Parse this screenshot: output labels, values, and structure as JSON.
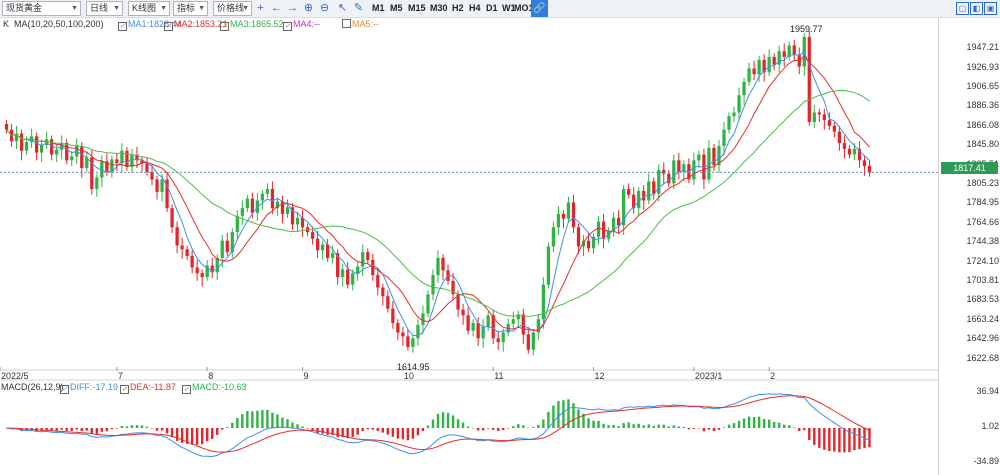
{
  "toolbar": {
    "symbol": "现货黄金",
    "interval": "日线",
    "chart_type": "K线图",
    "indicator": "指标",
    "line_tool": "价格线",
    "periods": [
      "M1",
      "M5",
      "M15",
      "M30",
      "H2",
      "H4",
      "D1",
      "W1",
      "MO1"
    ]
  },
  "legend": {
    "k": "K",
    "ma_params": "MA(10,20,50,100,200)",
    "ma1": "MA1:1828.44",
    "ma2": "MA2:1853.21",
    "ma3": "MA3:1865.52",
    "ma4": "MA4:--",
    "ma5": "MA5:--"
  },
  "macd_legend": {
    "params": "MACD(26,12,9)",
    "diff": "DIFF:-17.19",
    "dea": "DEA:-11.87",
    "macd": "MACD:-10.63"
  },
  "colors": {
    "up": "#2fb344",
    "down": "#e0262b",
    "ma1": "#3f8fe6",
    "ma2": "#e3302d",
    "ma3": "#4bbd4b"
  },
  "chart_data": {
    "type": "candlestick",
    "x_ticks": [
      "2022/5",
      "7",
      "8",
      "9",
      "10",
      "11",
      "12",
      "2023/1",
      "2"
    ],
    "y_ticks": [
      "1947.21",
      "1926.93",
      "1906.65",
      "1886.36",
      "1866.08",
      "1845.80",
      "1825.51",
      "1805.23",
      "1784.95",
      "1764.66",
      "1744.38",
      "1724.10",
      "1703.81",
      "1683.53",
      "1663.24",
      "1642.96",
      "1622.68"
    ],
    "y_range": [
      1614,
      1962
    ],
    "last_price": "1817.41",
    "annotations": {
      "high": "1959.77",
      "low": "1614.95"
    },
    "candles_close": [
      1862,
      1850,
      1858,
      1840,
      1849,
      1855,
      1838,
      1846,
      1852,
      1836,
      1841,
      1848,
      1830,
      1834,
      1845,
      1822,
      1833,
      1800,
      1812,
      1829,
      1818,
      1831,
      1827,
      1840,
      1823,
      1836,
      1830,
      1827,
      1818,
      1810,
      1797,
      1810,
      1780,
      1760,
      1741,
      1737,
      1730,
      1718,
      1712,
      1708,
      1720,
      1713,
      1728,
      1746,
      1734,
      1755,
      1772,
      1780,
      1790,
      1775,
      1788,
      1795,
      1800,
      1780,
      1787,
      1774,
      1781,
      1763,
      1770,
      1760,
      1755,
      1748,
      1736,
      1742,
      1728,
      1733,
      1708,
      1716,
      1700,
      1712,
      1719,
      1734,
      1726,
      1710,
      1697,
      1688,
      1675,
      1660,
      1650,
      1646,
      1635,
      1644,
      1658,
      1670,
      1690,
      1710,
      1728,
      1715,
      1704,
      1690,
      1674,
      1668,
      1652,
      1660,
      1644,
      1656,
      1668,
      1644,
      1640,
      1650,
      1659,
      1664,
      1669,
      1648,
      1632,
      1650,
      1664,
      1700,
      1740,
      1760,
      1774,
      1769,
      1786,
      1760,
      1740,
      1746,
      1738,
      1750,
      1766,
      1748,
      1756,
      1770,
      1762,
      1800,
      1794,
      1780,
      1798,
      1788,
      1808,
      1795,
      1820,
      1816,
      1806,
      1830,
      1818,
      1826,
      1810,
      1830,
      1836,
      1810,
      1843,
      1825,
      1845,
      1862,
      1876,
      1880,
      1898,
      1912,
      1926,
      1920,
      1935,
      1922,
      1938,
      1930,
      1944,
      1938,
      1950,
      1940,
      1928,
      1959,
      1870,
      1880,
      1878,
      1872,
      1866,
      1860,
      1848,
      1842,
      1836,
      1842,
      1830,
      1824,
      1817
    ],
    "ma1_level": 1828.44,
    "ma2_level": 1853.21,
    "ma3_level": 1865.52,
    "macd_y_ticks": [
      "36.94",
      "1.02",
      "-34.89"
    ],
    "macd_hist_last": -10.63,
    "diff_last": -17.19,
    "dea_last": -11.87
  }
}
